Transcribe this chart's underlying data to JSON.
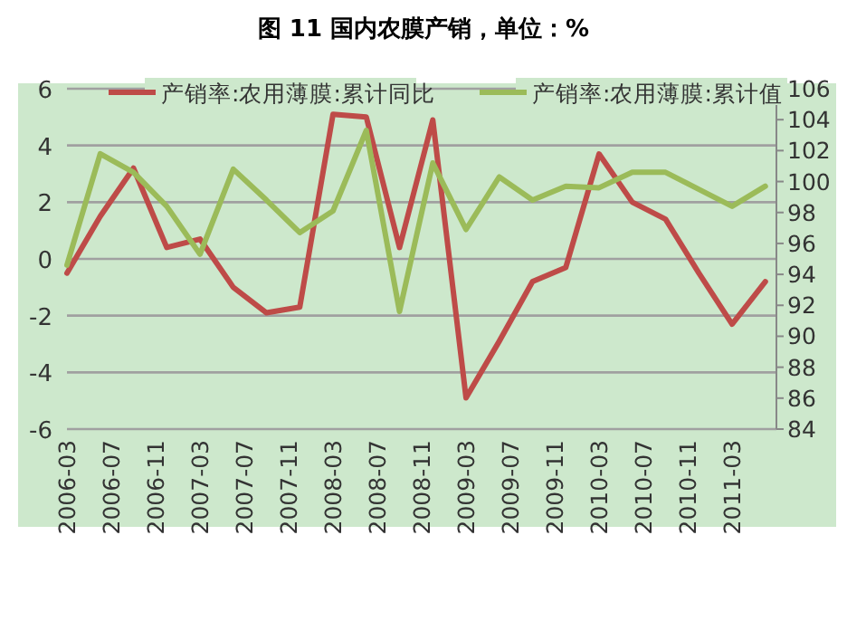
{
  "chart_data": {
    "type": "line",
    "title": "图 11   国内农膜产销，单位：%",
    "x": [
      "2006-03",
      "2006-06",
      "2006-09",
      "2006-12",
      "2007-03",
      "2007-06",
      "2007-09",
      "2007-12",
      "2008-03",
      "2008-06",
      "2008-09",
      "2008-12",
      "2009-03",
      "2009-06",
      "2009-09",
      "2009-12",
      "2010-03",
      "2010-06",
      "2010-09",
      "2010-12",
      "2011-03",
      "2011-06"
    ],
    "series": [
      {
        "name": "产销率:农用薄膜:累计同比",
        "color": "#be4b48",
        "values": [
          -0.5,
          1.5,
          3.2,
          0.4,
          0.7,
          -1.0,
          -1.9,
          -1.7,
          5.1,
          5.0,
          0.4,
          4.9,
          -4.9,
          -2.9,
          -0.8,
          -0.3,
          3.7,
          2.0,
          1.4,
          -0.5,
          -2.3,
          -0.8
        ]
      },
      {
        "name": "产销率:农用薄膜:累计值",
        "color": "#9bbb59",
        "axis": "y2",
        "values": [
          94.6,
          101.8,
          100.6,
          98.4,
          95.3,
          100.8,
          98.8,
          96.7,
          98.1,
          103.3,
          91.6,
          101.2,
          96.9,
          100.3,
          98.8,
          99.7,
          99.6,
          100.6,
          100.6,
          99.5,
          98.4,
          99.7
        ]
      }
    ],
    "xlim": [
      "2006-03",
      "2011-07"
    ],
    "xticks": [
      "2006-03",
      "2006-07",
      "2006-11",
      "2007-03",
      "2007-07",
      "2007-11",
      "2008-03",
      "2008-07",
      "2008-11",
      "2009-03",
      "2009-07",
      "2009-11",
      "2010-03",
      "2010-07",
      "2010-11",
      "2011-03"
    ],
    "ylim": [
      -6,
      6
    ],
    "yticks": [
      -6,
      -4,
      -2,
      0,
      2,
      4,
      6
    ],
    "y2lim": [
      84,
      106
    ],
    "y2ticks": [
      84,
      86,
      88,
      90,
      92,
      94,
      96,
      98,
      100,
      102,
      104,
      106
    ],
    "grid": "y",
    "legend": "top",
    "line_style": "solid",
    "marker": "none"
  }
}
